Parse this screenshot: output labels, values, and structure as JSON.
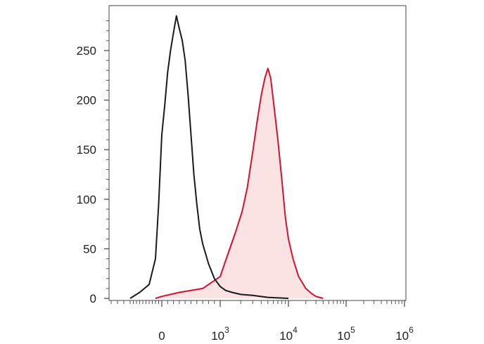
{
  "chart_data": {
    "type": "area",
    "title": "",
    "xlabel": "",
    "ylabel": "",
    "x_scale": "biexponential",
    "x_tick_labels": [
      {
        "value": 0,
        "base": "0",
        "exp": ""
      },
      {
        "value": 1000,
        "base": "10",
        "exp": "3"
      },
      {
        "value": 10000,
        "base": "10",
        "exp": "4"
      },
      {
        "value": 100000,
        "base": "10",
        "exp": "5"
      },
      {
        "value": 1000000,
        "base": "10",
        "exp": "6"
      }
    ],
    "y_tick_labels": [
      "0",
      "50",
      "100",
      "150",
      "200",
      "250"
    ],
    "y_ticks": [
      0,
      50,
      100,
      150,
      200,
      250
    ],
    "xlim": [
      -2000,
      1000000
    ],
    "ylim": [
      0,
      290
    ],
    "grid": false,
    "legend": "none",
    "series": [
      {
        "fill": "none",
        "color": "#1a1a1a",
        "x": [
          -1000,
          -700,
          -400,
          -200,
          -100,
          0,
          50,
          100,
          150,
          200,
          250,
          300,
          350,
          400,
          450,
          500,
          550,
          600,
          650,
          700,
          800,
          900,
          1000,
          1200,
          1500,
          2000,
          3000,
          5000,
          10000
        ],
        "y": [
          0,
          6,
          14,
          40,
          95,
          165,
          195,
          228,
          250,
          268,
          285,
          272,
          260,
          240,
          205,
          165,
          125,
          95,
          70,
          55,
          35,
          20,
          12,
          8,
          6,
          4,
          3,
          1,
          0
        ]
      },
      {
        "fill": "#fbe3e3",
        "color": "#d8102c",
        "x": [
          -200,
          0,
          300,
          700,
          1000,
          1300,
          1700,
          2100,
          2500,
          3000,
          3500,
          4000,
          4500,
          5000,
          5500,
          6000,
          7000,
          8000,
          9000,
          10000,
          12000,
          15000,
          20000,
          25000,
          30000,
          40000
        ],
        "y": [
          0,
          2,
          6,
          10,
          22,
          45,
          68,
          88,
          112,
          148,
          180,
          205,
          222,
          232,
          222,
          200,
          160,
          120,
          82,
          60,
          40,
          22,
          10,
          5,
          2,
          0
        ]
      }
    ]
  }
}
